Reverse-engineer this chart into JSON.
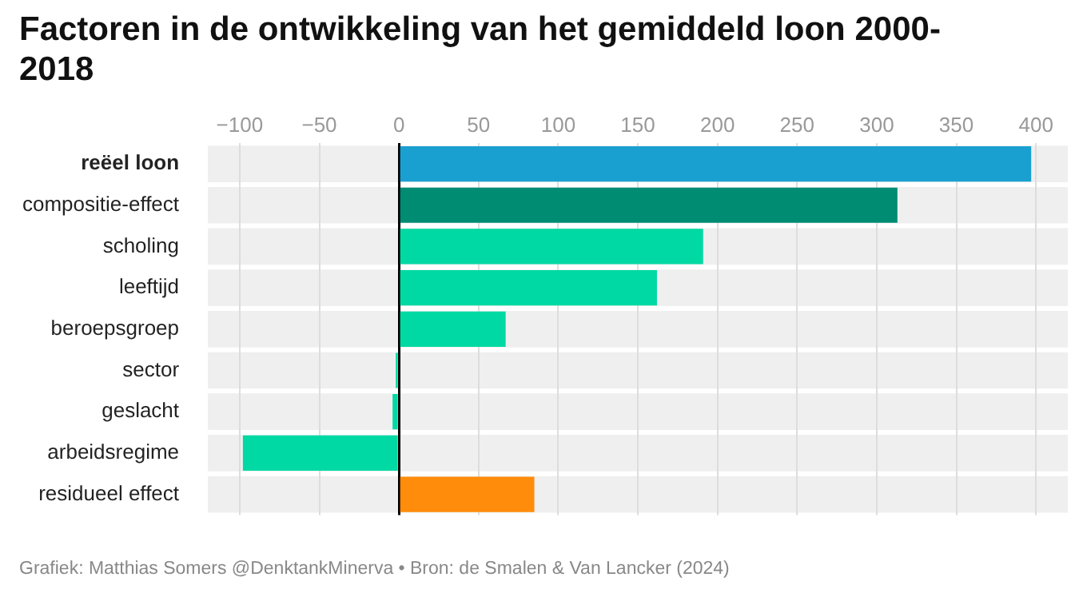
{
  "chart_data": {
    "type": "bar",
    "orientation": "horizontal",
    "title": "Factoren in de ontwikkeling van het gemiddeld loon 2000-2018",
    "categories": [
      "reëel loon",
      "compositie-effect",
      "scholing",
      "leeftijd",
      "beroepsgroep",
      "sector",
      "geslacht",
      "arbeidsregime",
      "residueel effect"
    ],
    "values": [
      397,
      313,
      191,
      162,
      67,
      -2,
      -4,
      -98,
      85
    ],
    "colors": [
      "#1aa0d0",
      "#008b73",
      "#00d9a3",
      "#00d9a3",
      "#00d9a3",
      "#00d9a3",
      "#00d9a3",
      "#00d9a3",
      "#ff8c0a"
    ],
    "xlim": [
      -120,
      420
    ],
    "xticks": [
      -100,
      -50,
      0,
      50,
      100,
      150,
      200,
      250,
      300,
      350,
      400
    ],
    "grid": "x",
    "annotations": [
      "Grafiek: Matthias Somers @DenktankMinerva • Bron: de Smalen & Van Lancker (2024)"
    ]
  }
}
